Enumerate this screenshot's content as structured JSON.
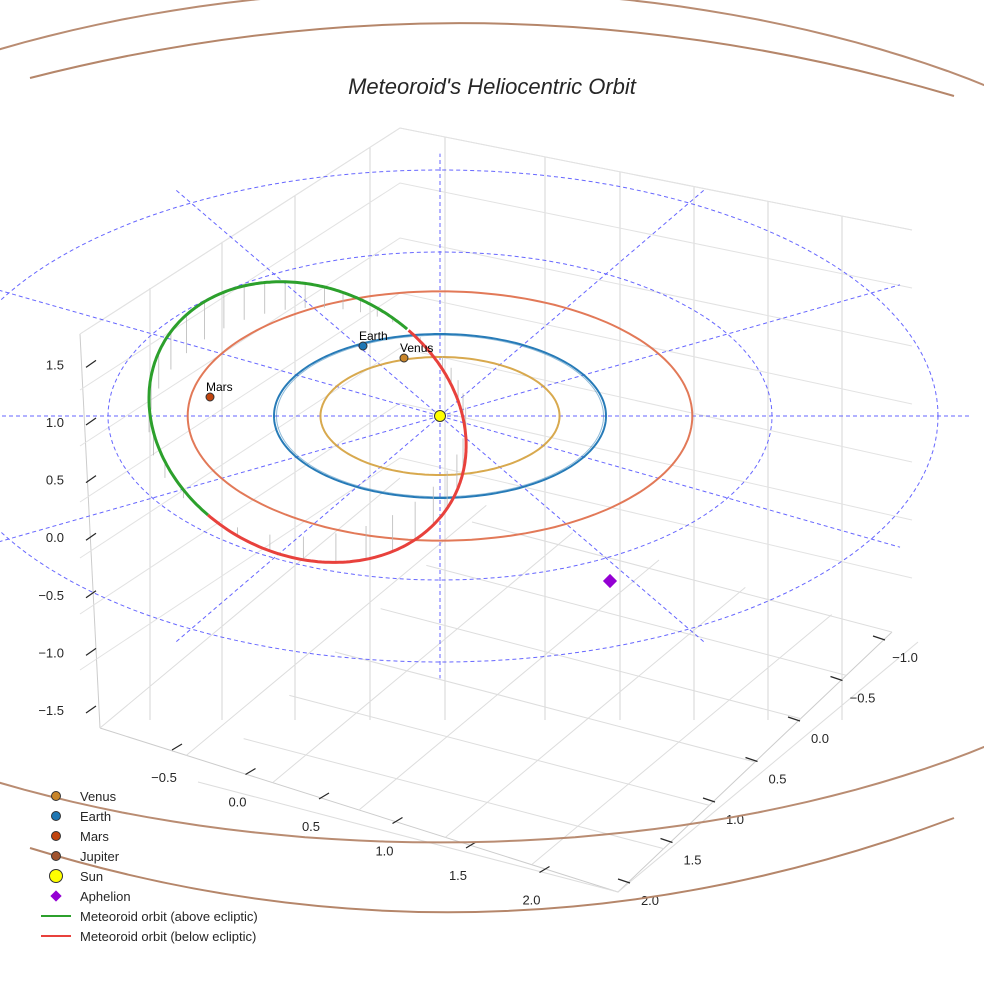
{
  "chart_data": {
    "type": "scatter",
    "title": "Meteoroid's Heliocentric Orbit",
    "xlabel": "",
    "ylabel": "",
    "zlabel": "",
    "x_ticks": [
      -0.5,
      0.0,
      0.5,
      1.0,
      1.5,
      2.0
    ],
    "y_ticks": [
      -1.0,
      -0.5,
      0.0,
      0.5,
      1.0,
      1.5,
      2.0
    ],
    "z_ticks": [
      -1.5,
      -1.0,
      -0.5,
      0.0,
      0.5,
      1.0,
      1.5
    ],
    "x_tick_labels": [
      "−0.5",
      "0.0",
      "0.5",
      "1.0",
      "1.5",
      "2.0"
    ],
    "y_tick_labels": [
      "−1.0",
      "−0.5",
      "0.0",
      "0.5",
      "1.0",
      "1.5",
      "2.0"
    ],
    "z_tick_labels": [
      "−1.5",
      "−1.0",
      "−0.5",
      "0.0",
      "0.5",
      "1.0",
      "1.5"
    ],
    "planet_orbits": [
      {
        "name": "Venus",
        "radius_au": 0.72,
        "color": "#d6a445"
      },
      {
        "name": "Earth",
        "radius_au": 1.0,
        "color": "#1f77b4"
      },
      {
        "name": "Mars",
        "radius_au": 1.52,
        "color": "#e0724f"
      },
      {
        "name": "Jupiter",
        "radius_au": 5.2,
        "color": "#b5866a"
      }
    ],
    "reference_grid": {
      "circle_radii_au": [
        1.0,
        2.0,
        3.0
      ],
      "spokes": 12,
      "color": "#4c4cff"
    },
    "meteoroid_orbit": {
      "semi_major_axis_au": 1.5,
      "eccentricity": 0.33,
      "above_color": "#2ca02c",
      "below_color": "#e8413c"
    },
    "sun": {
      "x": 0,
      "y": 0,
      "z": 0,
      "color": "#ffff00"
    },
    "aphelion_color": "#9400d3",
    "legend": [
      {
        "label": "Venus",
        "kind": "dot",
        "color": "#c8852a"
      },
      {
        "label": "Earth",
        "kind": "dot",
        "color": "#1f77b4"
      },
      {
        "label": "Mars",
        "kind": "dot",
        "color": "#c1440e"
      },
      {
        "label": "Jupiter",
        "kind": "dot",
        "color": "#a0522d"
      },
      {
        "label": "Sun",
        "kind": "sun",
        "color": "#ffff00"
      },
      {
        "label": "Aphelion",
        "kind": "diamond",
        "color": "#9400d3"
      },
      {
        "label": "Meteoroid orbit (above ecliptic)",
        "kind": "line",
        "color": "#2ca02c"
      },
      {
        "label": "Meteoroid orbit (below ecliptic)",
        "kind": "line",
        "color": "#e8413c"
      }
    ],
    "planet_labels": [
      "Earth",
      "Venus",
      "Mars"
    ]
  }
}
